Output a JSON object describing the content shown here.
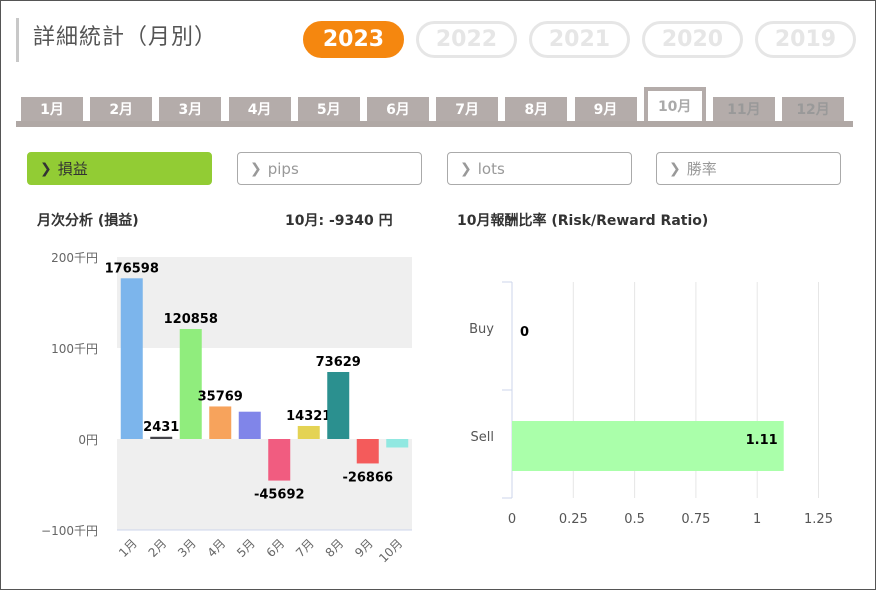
{
  "title": "詳細統計（月別）",
  "years": [
    {
      "label": "2023",
      "active": true
    },
    {
      "label": "2022",
      "active": false
    },
    {
      "label": "2021",
      "active": false
    },
    {
      "label": "2020",
      "active": false
    },
    {
      "label": "2019",
      "active": false
    }
  ],
  "months": [
    {
      "label": "1月",
      "state": "normal"
    },
    {
      "label": "2月",
      "state": "normal"
    },
    {
      "label": "3月",
      "state": "normal"
    },
    {
      "label": "4月",
      "state": "normal"
    },
    {
      "label": "5月",
      "state": "normal"
    },
    {
      "label": "6月",
      "state": "normal"
    },
    {
      "label": "7月",
      "state": "normal"
    },
    {
      "label": "8月",
      "state": "normal"
    },
    {
      "label": "9月",
      "state": "normal"
    },
    {
      "label": "10月",
      "state": "active"
    },
    {
      "label": "11月",
      "state": "disabled"
    },
    {
      "label": "12月",
      "state": "disabled"
    }
  ],
  "metrics": [
    {
      "label": "損益",
      "active": true
    },
    {
      "label": "pips",
      "active": false
    },
    {
      "label": "lots",
      "active": false
    },
    {
      "label": "勝率",
      "active": false
    }
  ],
  "left_heading": "月次分析 (損益)",
  "month_summary": "10月:  -9340 円",
  "right_heading": "10月報酬比率 (Risk/Reward Ratio)",
  "colors": {
    "accent": "#f5870f",
    "metric_active": "#92cc34",
    "tab": "#b4acaa"
  },
  "chart_data": [
    {
      "type": "bar",
      "title": "月次分析 (損益)",
      "categories": [
        "1月",
        "2月",
        "3月",
        "4月",
        "5月",
        "6月",
        "7月",
        "8月",
        "9月",
        "10月"
      ],
      "values": [
        176598,
        2431,
        120858,
        35769,
        30000,
        -45692,
        14321,
        73629,
        -26866,
        -9340
      ],
      "value_labels": [
        "176598",
        "2431",
        "120858",
        "35769",
        "",
        "-45692",
        "14321",
        "73629",
        "-26866",
        ""
      ],
      "colors": [
        "#7cb5ec",
        "#434348",
        "#90ed7d",
        "#f7a35c",
        "#8085e9",
        "#f15c80",
        "#e4d354",
        "#2b908f",
        "#f45b5b",
        "#91e8e1"
      ],
      "yticks": [
        {
          "value": 200000,
          "label": "200千円"
        },
        {
          "value": 100000,
          "label": "100千円"
        },
        {
          "value": 0,
          "label": "0円"
        },
        {
          "value": -100000,
          "label": "−100千円"
        }
      ],
      "ylim": [
        -100000,
        200000
      ],
      "grid": false
    },
    {
      "type": "bar",
      "orientation": "horizontal",
      "title": "10月報酬比率 (Risk/Reward Ratio)",
      "categories": [
        "Buy",
        "Sell"
      ],
      "values": [
        0,
        1.11
      ],
      "value_labels": [
        "0",
        "1.11"
      ],
      "color": "#aaffaa",
      "xticks": [
        "0",
        "0.25",
        "0.5",
        "0.75",
        "1",
        "1.25"
      ],
      "xlim": [
        0,
        1.25
      ],
      "grid": true
    }
  ]
}
